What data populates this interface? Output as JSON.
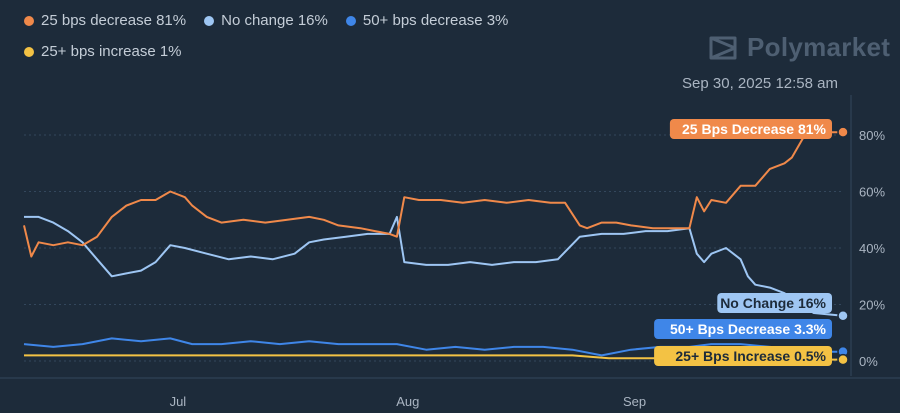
{
  "legend": [
    {
      "label": "25 bps decrease 81%",
      "color": "#f0894a"
    },
    {
      "label": "No change 16%",
      "color": "#9ec6f3"
    },
    {
      "label": "50+ bps decrease 3%",
      "color": "#3f86e8"
    },
    {
      "label": "25+ bps increase 1%",
      "color": "#f3c244"
    }
  ],
  "brand": {
    "name": "Polymarket",
    "icon": "polymarket-logo-icon"
  },
  "timestamp": "Sep 30, 2025 12:58 am",
  "chart_data": {
    "type": "line",
    "x_unit": "date",
    "x_range": [
      "2025-06-10",
      "2025-09-30"
    ],
    "xticks": [
      {
        "label": "Jul",
        "date": "2025-07-01"
      },
      {
        "label": "Aug",
        "date": "2025-08-01"
      },
      {
        "label": "Sep",
        "date": "2025-09-01"
      }
    ],
    "ylim": [
      -1,
      90
    ],
    "yticks": [
      {
        "value": 0,
        "label": "0%"
      },
      {
        "value": 20,
        "label": "20%"
      },
      {
        "value": 40,
        "label": "40%"
      },
      {
        "value": 60,
        "label": "60%"
      },
      {
        "value": 80,
        "label": "80%"
      }
    ],
    "grid": true,
    "series": [
      {
        "name": "25 Bps Decrease",
        "color": "#f0894a",
        "end_label": "25 Bps Decrease 81%",
        "points": [
          [
            "2025-06-10",
            48
          ],
          [
            "2025-06-11",
            37
          ],
          [
            "2025-06-12",
            42
          ],
          [
            "2025-06-14",
            41
          ],
          [
            "2025-06-16",
            42
          ],
          [
            "2025-06-18",
            41
          ],
          [
            "2025-06-20",
            44
          ],
          [
            "2025-06-22",
            51
          ],
          [
            "2025-06-24",
            55
          ],
          [
            "2025-06-26",
            57
          ],
          [
            "2025-06-28",
            57
          ],
          [
            "2025-06-30",
            60
          ],
          [
            "2025-07-02",
            58
          ],
          [
            "2025-07-03",
            55
          ],
          [
            "2025-07-05",
            51
          ],
          [
            "2025-07-07",
            49
          ],
          [
            "2025-07-10",
            50
          ],
          [
            "2025-07-13",
            49
          ],
          [
            "2025-07-16",
            50
          ],
          [
            "2025-07-19",
            51
          ],
          [
            "2025-07-21",
            50
          ],
          [
            "2025-07-23",
            48
          ],
          [
            "2025-07-26",
            47
          ],
          [
            "2025-07-28",
            46
          ],
          [
            "2025-07-30",
            45
          ],
          [
            "2025-07-31",
            44
          ],
          [
            "2025-08-01",
            58
          ],
          [
            "2025-08-03",
            57
          ],
          [
            "2025-08-06",
            57
          ],
          [
            "2025-08-09",
            56
          ],
          [
            "2025-08-12",
            57
          ],
          [
            "2025-08-15",
            56
          ],
          [
            "2025-08-18",
            57
          ],
          [
            "2025-08-21",
            56
          ],
          [
            "2025-08-23",
            56
          ],
          [
            "2025-08-25",
            48
          ],
          [
            "2025-08-26",
            47
          ],
          [
            "2025-08-28",
            49
          ],
          [
            "2025-08-30",
            49
          ],
          [
            "2025-09-01",
            48
          ],
          [
            "2025-09-04",
            47
          ],
          [
            "2025-09-07",
            47
          ],
          [
            "2025-09-09",
            47
          ],
          [
            "2025-09-10",
            58
          ],
          [
            "2025-09-11",
            53
          ],
          [
            "2025-09-12",
            57
          ],
          [
            "2025-09-14",
            56
          ],
          [
            "2025-09-16",
            62
          ],
          [
            "2025-09-18",
            62
          ],
          [
            "2025-09-20",
            68
          ],
          [
            "2025-09-22",
            70
          ],
          [
            "2025-09-23",
            72
          ],
          [
            "2025-09-25",
            81
          ],
          [
            "2025-09-27",
            81
          ],
          [
            "2025-09-30",
            81
          ]
        ]
      },
      {
        "name": "No Change",
        "color": "#9ec6f3",
        "end_label": "No Change 16%",
        "points": [
          [
            "2025-06-10",
            51
          ],
          [
            "2025-06-12",
            51
          ],
          [
            "2025-06-14",
            49
          ],
          [
            "2025-06-16",
            46
          ],
          [
            "2025-06-18",
            42
          ],
          [
            "2025-06-20",
            36
          ],
          [
            "2025-06-22",
            30
          ],
          [
            "2025-06-24",
            31
          ],
          [
            "2025-06-26",
            32
          ],
          [
            "2025-06-28",
            35
          ],
          [
            "2025-06-30",
            41
          ],
          [
            "2025-07-02",
            40
          ],
          [
            "2025-07-05",
            38
          ],
          [
            "2025-07-08",
            36
          ],
          [
            "2025-07-11",
            37
          ],
          [
            "2025-07-14",
            36
          ],
          [
            "2025-07-17",
            38
          ],
          [
            "2025-07-19",
            42
          ],
          [
            "2025-07-21",
            43
          ],
          [
            "2025-07-24",
            44
          ],
          [
            "2025-07-27",
            45
          ],
          [
            "2025-07-30",
            45
          ],
          [
            "2025-07-31",
            51
          ],
          [
            "2025-08-01",
            35
          ],
          [
            "2025-08-04",
            34
          ],
          [
            "2025-08-07",
            34
          ],
          [
            "2025-08-10",
            35
          ],
          [
            "2025-08-13",
            34
          ],
          [
            "2025-08-16",
            35
          ],
          [
            "2025-08-19",
            35
          ],
          [
            "2025-08-22",
            36
          ],
          [
            "2025-08-25",
            44
          ],
          [
            "2025-08-28",
            45
          ],
          [
            "2025-08-31",
            45
          ],
          [
            "2025-09-03",
            46
          ],
          [
            "2025-09-06",
            46
          ],
          [
            "2025-09-09",
            47
          ],
          [
            "2025-09-10",
            38
          ],
          [
            "2025-09-11",
            35
          ],
          [
            "2025-09-12",
            38
          ],
          [
            "2025-09-14",
            40
          ],
          [
            "2025-09-16",
            36
          ],
          [
            "2025-09-17",
            30
          ],
          [
            "2025-09-18",
            27
          ],
          [
            "2025-09-20",
            26
          ],
          [
            "2025-09-22",
            24
          ],
          [
            "2025-09-24",
            20
          ],
          [
            "2025-09-26",
            17
          ],
          [
            "2025-09-30",
            16
          ]
        ]
      },
      {
        "name": "50+ Bps Decrease",
        "color": "#3f86e8",
        "end_label": "50+ Bps Decrease 3.3%",
        "points": [
          [
            "2025-06-10",
            6
          ],
          [
            "2025-06-14",
            5
          ],
          [
            "2025-06-18",
            6
          ],
          [
            "2025-06-22",
            8
          ],
          [
            "2025-06-26",
            7
          ],
          [
            "2025-06-30",
            8
          ],
          [
            "2025-07-03",
            6
          ],
          [
            "2025-07-07",
            6
          ],
          [
            "2025-07-11",
            7
          ],
          [
            "2025-07-15",
            6
          ],
          [
            "2025-07-19",
            7
          ],
          [
            "2025-07-23",
            6
          ],
          [
            "2025-07-27",
            6
          ],
          [
            "2025-07-31",
            6
          ],
          [
            "2025-08-04",
            4
          ],
          [
            "2025-08-08",
            5
          ],
          [
            "2025-08-12",
            4
          ],
          [
            "2025-08-16",
            5
          ],
          [
            "2025-08-20",
            5
          ],
          [
            "2025-08-24",
            4
          ],
          [
            "2025-08-28",
            2
          ],
          [
            "2025-09-01",
            4
          ],
          [
            "2025-09-05",
            5
          ],
          [
            "2025-09-09",
            5
          ],
          [
            "2025-09-12",
            6
          ],
          [
            "2025-09-16",
            6
          ],
          [
            "2025-09-20",
            5
          ],
          [
            "2025-09-24",
            4
          ],
          [
            "2025-09-27",
            3.3
          ],
          [
            "2025-09-30",
            3.3
          ]
        ]
      },
      {
        "name": "25+ Bps Increase",
        "color": "#f3c244",
        "end_label": "25+ Bps Increase 0.5%",
        "points": [
          [
            "2025-06-10",
            2
          ],
          [
            "2025-06-15",
            2
          ],
          [
            "2025-06-20",
            2
          ],
          [
            "2025-06-25",
            2
          ],
          [
            "2025-06-30",
            2
          ],
          [
            "2025-07-05",
            2
          ],
          [
            "2025-07-10",
            2
          ],
          [
            "2025-07-15",
            2
          ],
          [
            "2025-07-20",
            2
          ],
          [
            "2025-07-25",
            2
          ],
          [
            "2025-07-30",
            2
          ],
          [
            "2025-08-04",
            2
          ],
          [
            "2025-08-09",
            2
          ],
          [
            "2025-08-14",
            2
          ],
          [
            "2025-08-19",
            2
          ],
          [
            "2025-08-24",
            2
          ],
          [
            "2025-08-29",
            1
          ],
          [
            "2025-09-03",
            1
          ],
          [
            "2025-09-08",
            1
          ],
          [
            "2025-09-13",
            1
          ],
          [
            "2025-09-18",
            1
          ],
          [
            "2025-09-23",
            0.5
          ],
          [
            "2025-09-28",
            0.5
          ],
          [
            "2025-09-30",
            0.5
          ]
        ]
      }
    ]
  }
}
